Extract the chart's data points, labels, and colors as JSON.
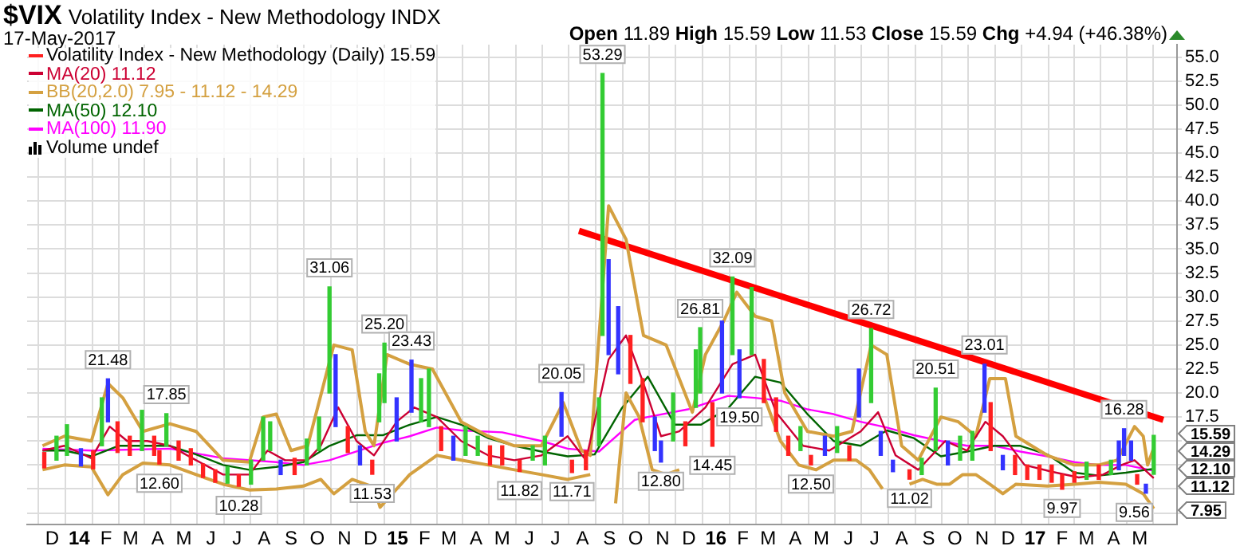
{
  "chart_data": {
    "type": "line",
    "title": "$VIX",
    "subtitle": "Volatility Index - New Methodology INDX",
    "xlim": [
      "2013-11-18",
      "2017-05-28"
    ],
    "xticks": [
      {
        "value": "2013-12-01",
        "label": "D"
      },
      {
        "value": "2014-01-01",
        "label": "14"
      },
      {
        "value": "2014-02-01",
        "label": "F"
      },
      {
        "value": "2014-03-01",
        "label": "M"
      },
      {
        "value": "2014-04-01",
        "label": "A"
      },
      {
        "value": "2014-05-01",
        "label": "M"
      },
      {
        "value": "2014-06-01",
        "label": "J"
      },
      {
        "value": "2014-07-01",
        "label": "J"
      },
      {
        "value": "2014-08-01",
        "label": "A"
      },
      {
        "value": "2014-09-01",
        "label": "S"
      },
      {
        "value": "2014-10-01",
        "label": "O"
      },
      {
        "value": "2014-11-01",
        "label": "N"
      },
      {
        "value": "2014-12-01",
        "label": "D"
      },
      {
        "value": "2015-01-01",
        "label": "15"
      },
      {
        "value": "2015-02-01",
        "label": "F"
      },
      {
        "value": "2015-03-01",
        "label": "M"
      },
      {
        "value": "2015-04-01",
        "label": "A"
      },
      {
        "value": "2015-05-01",
        "label": "M"
      },
      {
        "value": "2015-06-01",
        "label": "J"
      },
      {
        "value": "2015-07-01",
        "label": "J"
      },
      {
        "value": "2015-08-01",
        "label": "A"
      },
      {
        "value": "2015-09-01",
        "label": "S"
      },
      {
        "value": "2015-10-01",
        "label": "O"
      },
      {
        "value": "2015-11-01",
        "label": "N"
      },
      {
        "value": "2015-12-01",
        "label": "D"
      },
      {
        "value": "2016-01-01",
        "label": "16"
      },
      {
        "value": "2016-02-01",
        "label": "F"
      },
      {
        "value": "2016-03-01",
        "label": "M"
      },
      {
        "value": "2016-04-01",
        "label": "A"
      },
      {
        "value": "2016-05-01",
        "label": "M"
      },
      {
        "value": "2016-06-01",
        "label": "J"
      },
      {
        "value": "2016-07-01",
        "label": "J"
      },
      {
        "value": "2016-08-01",
        "label": "A"
      },
      {
        "value": "2016-09-01",
        "label": "S"
      },
      {
        "value": "2016-10-01",
        "label": "O"
      },
      {
        "value": "2016-11-01",
        "label": "N"
      },
      {
        "value": "2016-12-01",
        "label": "D"
      },
      {
        "value": "2017-01-01",
        "label": "17"
      },
      {
        "value": "2017-02-01",
        "label": "F"
      },
      {
        "value": "2017-03-01",
        "label": "M"
      },
      {
        "value": "2017-04-01",
        "label": "A"
      },
      {
        "value": "2017-05-01",
        "label": "M"
      }
    ],
    "ylim": [
      6.3,
      56.3
    ],
    "yticks": [
      {
        "value": 7.5,
        "label": null
      },
      {
        "value": 10,
        "label": null
      },
      {
        "value": 12.5,
        "label": null
      },
      {
        "value": 15,
        "label": null
      },
      {
        "value": 17.5,
        "label": "17.5"
      },
      {
        "value": 20,
        "label": "20.0"
      },
      {
        "value": 22.5,
        "label": "22.5"
      },
      {
        "value": 25,
        "label": "25.0"
      },
      {
        "value": 27.5,
        "label": "27.5"
      },
      {
        "value": 30,
        "label": "30.0"
      },
      {
        "value": 32.5,
        "label": "32.5"
      },
      {
        "value": 35,
        "label": "35.0"
      },
      {
        "value": 37.5,
        "label": "37.5"
      },
      {
        "value": 40,
        "label": "40.0"
      },
      {
        "value": 42.5,
        "label": "42.5"
      },
      {
        "value": 45,
        "label": "45.0"
      },
      {
        "value": 47.5,
        "label": "47.5"
      },
      {
        "value": 50,
        "label": "50.0"
      },
      {
        "value": 52.5,
        "label": "52.5"
      },
      {
        "value": 55,
        "label": "55.0"
      }
    ],
    "grid": true,
    "legend": "top left",
    "marker": "none",
    "series": [
      {
        "name": "Volatility Index - New Methodology (Daily) 15.59",
        "type": "bar",
        "x": [
          "2013-11-22",
          "2013-12-06",
          "2013-12-18",
          "2014-01-03",
          "2014-01-17",
          "2014-01-27",
          "2014-02-03",
          "2014-02-14",
          "2014-02-28",
          "2014-03-14",
          "2014-03-28",
          "2014-04-03",
          "2014-04-11",
          "2014-04-25",
          "2014-05-09",
          "2014-05-23",
          "2014-06-06",
          "2014-06-20",
          "2014-07-03",
          "2014-07-17",
          "2014-07-31",
          "2014-08-08",
          "2014-08-20",
          "2014-09-05",
          "2014-09-19",
          "2014-10-03",
          "2014-10-15",
          "2014-10-22",
          "2014-11-05",
          "2014-11-19",
          "2014-12-03",
          "2014-12-11",
          "2014-12-17",
          "2014-12-31",
          "2015-01-17",
          "2015-01-28",
          "2015-02-06",
          "2015-02-20",
          "2015-03-06",
          "2015-03-20",
          "2015-04-03",
          "2015-04-17",
          "2015-05-01",
          "2015-05-21",
          "2015-06-05",
          "2015-06-19",
          "2015-07-08",
          "2015-07-20",
          "2015-08-05",
          "2015-08-20",
          "2015-08-24",
          "2015-08-31",
          "2015-09-11",
          "2015-09-25",
          "2015-10-09",
          "2015-10-23",
          "2015-10-30",
          "2015-11-13",
          "2015-11-27",
          "2015-12-09",
          "2015-12-14",
          "2015-12-28",
          "2016-01-08",
          "2016-01-20",
          "2016-01-28",
          "2016-02-11",
          "2016-02-25",
          "2016-03-10",
          "2016-03-24",
          "2016-04-07",
          "2016-04-19",
          "2016-05-05",
          "2016-05-19",
          "2016-06-02",
          "2016-06-13",
          "2016-06-27",
          "2016-07-08",
          "2016-07-22",
          "2016-08-10",
          "2016-08-24",
          "2016-09-09",
          "2016-09-23",
          "2016-10-07",
          "2016-10-21",
          "2016-11-04",
          "2016-11-11",
          "2016-11-25",
          "2016-12-09",
          "2016-12-23",
          "2017-01-06",
          "2017-01-20",
          "2017-02-01",
          "2017-02-15",
          "2017-03-01",
          "2017-03-15",
          "2017-03-29",
          "2017-04-07",
          "2017-04-13",
          "2017-04-21",
          "2017-04-28",
          "2017-05-08",
          "2017-05-17"
        ],
        "base": [
          12.2,
          13.0,
          13.5,
          12.4,
          12.1,
          14.5,
          17.0,
          13.8,
          13.5,
          14.0,
          13.5,
          12.6,
          14.5,
          13.0,
          12.5,
          11.2,
          10.7,
          10.6,
          10.28,
          10.5,
          13.0,
          14.0,
          11.5,
          11.5,
          12.5,
          14.0,
          20.0,
          16.5,
          13.8,
          12.5,
          11.53,
          17.0,
          19.0,
          15.0,
          18.0,
          17.0,
          16.5,
          14.0,
          13.0,
          13.5,
          13.5,
          12.5,
          12.5,
          11.82,
          13.0,
          12.5,
          15.5,
          11.71,
          12.0,
          14.5,
          26.0,
          24.0,
          22.0,
          21.0,
          17.0,
          14.0,
          12.8,
          15.0,
          14.5,
          18.5,
          20.0,
          14.45,
          20.0,
          24.0,
          19.5,
          24.0,
          19.0,
          16.0,
          13.5,
          14.0,
          12.5,
          13.5,
          13.8,
          13.0,
          17.5,
          19.0,
          13.5,
          11.8,
          11.02,
          11.5,
          14.0,
          12.5,
          13.0,
          13.0,
          18.0,
          14.0,
          12.0,
          11.5,
          11.0,
          11.0,
          10.7,
          9.97,
          10.7,
          11.0,
          11.0,
          11.5,
          12.0,
          13.5,
          13.0,
          10.5,
          9.56,
          11.53
        ],
        "values": [
          1.6,
          2.5,
          3.2,
          1.8,
          1.9,
          5.0,
          4.48,
          3.2,
          2.0,
          4.2,
          2.0,
          1.4,
          3.35,
          2.0,
          1.7,
          1.4,
          1.3,
          1.7,
          1.22,
          2.5,
          4.5,
          3.0,
          1.5,
          1.7,
          2.7,
          3.5,
          11.06,
          7.5,
          2.7,
          2.0,
          1.47,
          5.0,
          6.2,
          4.5,
          5.43,
          4.5,
          6.0,
          2.5,
          2.5,
          3.0,
          2.0,
          2.0,
          2.0,
          1.18,
          1.5,
          3.0,
          4.55,
          1.29,
          2.0,
          5.0,
          27.29,
          9.9,
          7.0,
          5.0,
          4.5,
          3.5,
          2.2,
          5.0,
          2.5,
          6.0,
          6.81,
          4.55,
          7.5,
          8.09,
          5.0,
          7.0,
          4.5,
          3.5,
          2.0,
          2.5,
          1.0,
          2.0,
          2.7,
          1.5,
          5.0,
          7.72,
          2.5,
          1.2,
          0.98,
          1.7,
          6.51,
          2.5,
          2.5,
          3.0,
          5.01,
          5.0,
          1.5,
          2.0,
          1.5,
          1.5,
          1.8,
          1.53,
          1.1,
          1.8,
          1.5,
          1.5,
          3.0,
          2.78,
          2.0,
          1.0,
          0.94,
          4.06
        ],
        "colors": [
          "#ff2020",
          "#33cc33",
          "#33cc33",
          "#3333ff",
          "#ff2020",
          "#33cc33",
          "#3333ff",
          "#ff2020",
          "#ff2020",
          "#33cc33",
          "#ff2020",
          "#ff2020",
          "#33cc33",
          "#ff2020",
          "#ff2020",
          "#ff2020",
          "#ff2020",
          "#33cc33",
          "#ff2020",
          "#33cc33",
          "#33cc33",
          "#33cc33",
          "#3333ff",
          "#ff2020",
          "#33cc33",
          "#33cc33",
          "#33cc33",
          "#3333ff",
          "#ff2020",
          "#3333ff",
          "#ff2020",
          "#33cc33",
          "#33cc33",
          "#3333ff",
          "#3333ff",
          "#33cc33",
          "#33cc33",
          "#ff2020",
          "#3333ff",
          "#33cc33",
          "#33cc33",
          "#ff2020",
          "#ff2020",
          "#ff2020",
          "#33cc33",
          "#33cc33",
          "#3333ff",
          "#ff2020",
          "#ff2020",
          "#33cc33",
          "#33cc33",
          "#3333ff",
          "#3333ff",
          "#ff2020",
          "#ff2020",
          "#3333ff",
          "#3333ff",
          "#33cc33",
          "#ff2020",
          "#33cc33",
          "#33cc33",
          "#ff2020",
          "#3333ff",
          "#33cc33",
          "#3333ff",
          "#33cc33",
          "#ff2020",
          "#ff2020",
          "#ff2020",
          "#33cc33",
          "#ff2020",
          "#3333ff",
          "#33cc33",
          "#ff2020",
          "#3333ff",
          "#33cc33",
          "#3333ff",
          "#3333ff",
          "#ff2020",
          "#33cc33",
          "#33cc33",
          "#3333ff",
          "#33cc33",
          "#33cc33",
          "#3333ff",
          "#ff2020",
          "#3333ff",
          "#ff2020",
          "#ff2020",
          "#ff2020",
          "#ff2020",
          "#ff2020",
          "#ff2020",
          "#33cc33",
          "#ff2020",
          "#33cc33",
          "#3333ff",
          "#3333ff",
          "#3333ff",
          "#ff2020",
          "#3333ff",
          "#33cc33"
        ]
      },
      {
        "name": "MA(20) 11.12",
        "color": "#cc0033",
        "x": [
          "2013-11-20",
          "2013-12-15",
          "2014-01-15",
          "2014-02-05",
          "2014-02-25",
          "2014-03-20",
          "2014-04-15",
          "2014-05-15",
          "2014-06-15",
          "2014-07-15",
          "2014-08-05",
          "2014-08-25",
          "2014-09-20",
          "2014-10-05",
          "2014-10-25",
          "2014-11-15",
          "2014-12-05",
          "2014-12-31",
          "2015-01-20",
          "2015-02-15",
          "2015-03-15",
          "2015-04-15",
          "2015-05-15",
          "2015-06-15",
          "2015-07-15",
          "2015-08-05",
          "2015-08-31",
          "2015-09-20",
          "2015-10-10",
          "2015-10-30",
          "2015-11-20",
          "2015-12-20",
          "2016-01-20",
          "2016-02-15",
          "2016-03-10",
          "2016-04-10",
          "2016-05-10",
          "2016-06-15",
          "2016-07-05",
          "2016-07-25",
          "2016-08-20",
          "2016-09-20",
          "2016-10-15",
          "2016-11-05",
          "2016-11-25",
          "2016-12-20",
          "2017-01-20",
          "2017-02-20",
          "2017-03-20",
          "2017-04-10",
          "2017-04-25",
          "2017-05-17"
        ],
        "values": [
          14.0,
          14.5,
          13.2,
          16.5,
          15.0,
          15.0,
          14.5,
          13.0,
          11.5,
          11.5,
          14.0,
          13.0,
          13.0,
          14.5,
          18.5,
          15.0,
          13.5,
          17.0,
          18.5,
          17.5,
          15.0,
          13.5,
          13.0,
          13.5,
          15.5,
          13.0,
          23.5,
          26.0,
          21.0,
          15.5,
          16.0,
          18.5,
          23.0,
          24.0,
          18.0,
          14.5,
          14.0,
          16.0,
          18.0,
          13.5,
          12.0,
          15.0,
          14.0,
          17.0,
          15.5,
          12.5,
          11.8,
          11.2,
          11.5,
          12.5,
          13.0,
          11.12
        ]
      },
      {
        "name": "BB(20,2.0) 7.95 - 11.12 - 14.29",
        "color": "#d4a040",
        "x": [
          "2013-11-20",
          "2013-12-15",
          "2014-01-15",
          "2014-02-03",
          "2014-02-20",
          "2014-03-15",
          "2014-04-15",
          "2014-05-15",
          "2014-06-15",
          "2014-07-15",
          "2014-07-31",
          "2014-08-15",
          "2014-09-01",
          "2014-09-20",
          "2014-10-20",
          "2014-11-10",
          "2014-11-25",
          "2014-12-05",
          "2014-12-20",
          "2015-01-15",
          "2015-02-10",
          "2015-03-15",
          "2015-04-15",
          "2015-05-15",
          "2015-06-15",
          "2015-07-10",
          "2015-07-31",
          "2015-08-10",
          "2015-08-31",
          "2015-09-20",
          "2015-10-10",
          "2015-11-05",
          "2015-12-05",
          "2015-12-20",
          "2016-01-10",
          "2016-01-25",
          "2016-02-15",
          "2016-03-05",
          "2016-03-20",
          "2016-04-15",
          "2016-05-15",
          "2016-06-05",
          "2016-06-27",
          "2016-07-15",
          "2016-08-01",
          "2016-08-20",
          "2016-09-15",
          "2016-10-05",
          "2016-10-25",
          "2016-11-10",
          "2016-11-28",
          "2016-12-10",
          "2017-01-15",
          "2017-02-15",
          "2017-03-15",
          "2017-04-05",
          "2017-04-25",
          "2017-05-05",
          "2017-05-10",
          "2017-05-17"
        ],
        "values": [
          14.5,
          15.5,
          15.0,
          21.0,
          19.5,
          16.0,
          16.8,
          16.0,
          13.0,
          12.8,
          17.5,
          17.8,
          14.0,
          14.5,
          25.0,
          24.5,
          16.0,
          14.5,
          24.0,
          23.0,
          22.5,
          17.0,
          15.5,
          14.5,
          14.5,
          19.0,
          14.0,
          13.5,
          39.5,
          36.0,
          26.0,
          25.0,
          18.0,
          24.0,
          27.5,
          30.5,
          28.0,
          27.5,
          20.0,
          16.0,
          15.5,
          16.0,
          25.0,
          24.0,
          14.5,
          13.0,
          17.5,
          17.0,
          15.5,
          21.5,
          21.5,
          15.5,
          13.5,
          12.5,
          12.5,
          13.0,
          16.5,
          15.5,
          12.5,
          14.29
        ]
      },
      {
        "color": "#d4a040",
        "x": [
          "2013-11-20",
          "2013-12-15",
          "2014-01-15",
          "2014-02-03",
          "2014-02-20",
          "2014-03-15",
          "2014-04-15",
          "2014-05-15",
          "2014-06-15",
          "2014-07-15",
          "2014-08-15",
          "2014-09-15",
          "2014-10-05",
          "2014-10-20",
          "2014-11-10",
          "2014-12-05",
          "2014-12-12",
          "2015-01-15",
          "2015-02-15",
          "2015-03-15",
          "2015-04-15",
          "2015-05-15",
          "2015-06-15",
          "2015-07-15",
          "2015-08-10",
          "2015-08-24",
          "2015-08-31",
          "2015-09-08",
          "2015-09-20",
          "2015-10-05",
          "2015-10-20",
          "2015-11-05",
          "2015-11-20",
          "2015-12-10",
          "2015-12-30",
          "2016-01-15",
          "2016-02-05",
          "2016-02-25",
          "2016-03-15",
          "2016-04-05",
          "2016-04-25",
          "2016-05-15",
          "2016-06-10",
          "2016-06-25",
          "2016-07-10",
          "2016-07-25",
          "2016-08-10",
          "2016-08-25",
          "2016-09-10",
          "2016-09-25",
          "2016-10-10",
          "2016-10-25",
          "2016-11-10",
          "2016-11-25",
          "2016-12-10",
          "2017-01-15",
          "2017-02-15",
          "2017-03-15",
          "2017-04-15",
          "2017-05-05",
          "2017-05-17"
        ],
        "values": [
          12.0,
          12.5,
          12.3,
          9.4,
          11.5,
          12.7,
          12.5,
          11.5,
          10.5,
          9.9,
          10.0,
          10.3,
          11.0,
          9.5,
          11.0,
          10.2,
          8.1,
          11.5,
          13.5,
          13.0,
          12.5,
          12.0,
          11.5,
          11.0,
          11.5,
          null,
          null,
          8.5,
          20.0,
          17.5,
          12.0,
          11.5,
          12.0,
          null,
          null,
          null,
          null,
          19.7,
          15.0,
          12.5,
          12.0,
          13.0,
          13.0,
          12.0,
          10.0,
          null,
          10.5,
          11.0,
          10.5,
          10.5,
          11.5,
          11.5,
          10.5,
          9.5,
          10.5,
          10.3,
          10.5,
          10.7,
          10.5,
          9.5,
          7.95
        ]
      },
      {
        "name": "MA(50) 12.10",
        "color": "#006400",
        "x": [
          "2013-11-20",
          "2013-12-15",
          "2014-01-15",
          "2014-02-15",
          "2014-03-15",
          "2014-04-15",
          "2014-05-15",
          "2014-06-15",
          "2014-07-15",
          "2014-08-15",
          "2014-09-15",
          "2014-10-15",
          "2014-11-15",
          "2014-12-15",
          "2015-01-15",
          "2015-02-15",
          "2015-03-15",
          "2015-04-15",
          "2015-05-15",
          "2015-06-15",
          "2015-07-15",
          "2015-08-15",
          "2015-09-15",
          "2015-10-15",
          "2015-11-15",
          "2015-12-15",
          "2016-01-15",
          "2016-02-15",
          "2016-03-15",
          "2016-04-15",
          "2016-05-15",
          "2016-06-15",
          "2016-07-15",
          "2016-08-15",
          "2016-09-15",
          "2016-10-15",
          "2016-11-15",
          "2016-12-15",
          "2017-01-15",
          "2017-02-15",
          "2017-03-15",
          "2017-04-15",
          "2017-05-17"
        ],
        "values": [
          14.0,
          14.0,
          13.4,
          14.5,
          14.5,
          14.5,
          13.6,
          12.5,
          12.0,
          12.3,
          12.8,
          14.5,
          15.6,
          15.6,
          16.7,
          17.5,
          16.7,
          15.3,
          14.5,
          13.9,
          13.4,
          13.6,
          18.4,
          21.7,
          16.7,
          16.7,
          18.4,
          21.7,
          21.1,
          17.8,
          15.0,
          14.5,
          16.1,
          15.3,
          13.4,
          13.9,
          14.5,
          14.5,
          13.6,
          11.7,
          11.4,
          11.7,
          12.1
        ]
      },
      {
        "name": "MA(100) 11.90",
        "color": "#ff00ff",
        "x": [
          "2013-11-20",
          "2014-01-15",
          "2014-04-15",
          "2014-06-15",
          "2014-08-15",
          "2014-09-15",
          "2014-10-15",
          "2014-12-15",
          "2015-01-15",
          "2015-02-15",
          "2015-03-15",
          "2015-05-01",
          "2015-06-15",
          "2015-07-15",
          "2015-08-20",
          "2015-09-30",
          "2015-10-15",
          "2015-11-30",
          "2016-01-15",
          "2016-02-15",
          "2016-03-15",
          "2016-04-15",
          "2016-05-15",
          "2016-06-15",
          "2016-07-15",
          "2016-08-15",
          "2016-09-15",
          "2016-10-15",
          "2016-11-15",
          "2016-12-15",
          "2017-01-15",
          "2017-02-15",
          "2017-03-15",
          "2017-04-15",
          "2017-05-17"
        ],
        "values": [
          14.2,
          14.0,
          14.2,
          13.2,
          12.8,
          12.5,
          13.0,
          14.8,
          15.5,
          16.4,
          16.1,
          15.9,
          15.0,
          14.2,
          13.9,
          17.2,
          17.5,
          18.3,
          19.7,
          19.5,
          19.2,
          18.3,
          17.8,
          17.0,
          16.4,
          15.6,
          15.0,
          14.5,
          14.5,
          13.9,
          13.4,
          12.8,
          12.5,
          12.5,
          11.9
        ]
      },
      {
        "color": "#ff0000",
        "x": [
          "2015-07-28",
          "2017-05-28"
        ],
        "values": [
          36.9,
          17.2
        ]
      }
    ],
    "annotations": [
      "17-May-2017",
      "Open 11.89 High 15.59 Low 11.53 Close 15.59 Chg +4.94 (+46.38%)",
      "Volume undef",
      {
        "text": "21.48",
        "x": "2014-02-03",
        "y": 21.48
      },
      {
        "text": "17.85",
        "x": "2014-04-11",
        "y": 17.85
      },
      {
        "text": "12.60",
        "x": "2014-04-03",
        "y": 12.6
      },
      {
        "text": "10.28",
        "x": "2014-07-03",
        "y": 10.28
      },
      {
        "text": "31.06",
        "x": "2014-10-15",
        "y": 31.06
      },
      {
        "text": "11.53",
        "x": "2014-12-03",
        "y": 11.53
      },
      {
        "text": "25.20",
        "x": "2014-12-17",
        "y": 25.2
      },
      {
        "text": "23.43",
        "x": "2015-01-17",
        "y": 23.43
      },
      {
        "text": "11.82",
        "x": "2015-05-21",
        "y": 11.82
      },
      {
        "text": "20.05",
        "x": "2015-07-08",
        "y": 20.05
      },
      {
        "text": "11.71",
        "x": "2015-07-20",
        "y": 11.71
      },
      {
        "text": "53.29",
        "x": "2015-08-24",
        "y": 53.29
      },
      {
        "text": "12.80",
        "x": "2015-10-30",
        "y": 12.8
      },
      {
        "text": "26.81",
        "x": "2015-12-14",
        "y": 26.81
      },
      {
        "text": "14.45",
        "x": "2015-12-28",
        "y": 14.45
      },
      {
        "text": "32.09",
        "x": "2016-01-20",
        "y": 32.09
      },
      {
        "text": "19.50",
        "x": "2016-01-28",
        "y": 19.5
      },
      {
        "text": "12.50",
        "x": "2016-04-19",
        "y": 12.5
      },
      {
        "text": "26.72",
        "x": "2016-06-27",
        "y": 26.72
      },
      {
        "text": "11.02",
        "x": "2016-08-10",
        "y": 11.02
      },
      {
        "text": "20.51",
        "x": "2016-09-09",
        "y": 20.51
      },
      {
        "text": "23.01",
        "x": "2016-11-04",
        "y": 23.01
      },
      {
        "text": "9.97",
        "x": "2017-02-01",
        "y": 9.97
      },
      {
        "text": "16.28",
        "x": "2017-04-13",
        "y": 16.28
      },
      {
        "text": "9.56",
        "x": "2017-05-08",
        "y": 9.56
      },
      "15.59",
      "14.29",
      "12.10",
      "11.12",
      "7.95"
    ]
  }
}
